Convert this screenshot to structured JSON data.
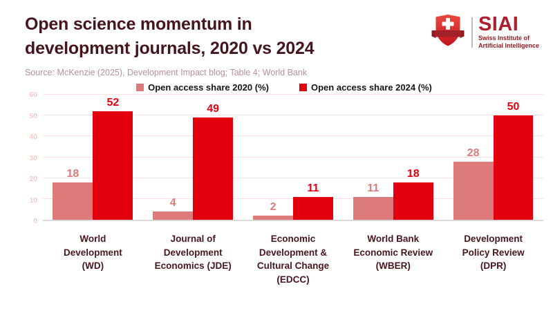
{
  "header": {
    "title": "Open science momentum in\ndevelopment journals, 2020 vs 2024",
    "source": "Source: McKenzie (2025), Development Impact blog; Table 4; World Bank"
  },
  "logo": {
    "acronym": "SIAI",
    "name_line1": "Swiss Institute of",
    "name_line2": "Artificial Intelligence"
  },
  "colors": {
    "title_maroon": "#44151e",
    "brand_red": "#b01d2c",
    "series_2020_pink": "#dd7a7a",
    "series_2024_red": "#e2000f",
    "source_mauve": "#b7909a",
    "ytick_pink": "#f3cbc7",
    "gridline_pink": "#f9e2e0"
  },
  "chart_data": {
    "type": "bar",
    "title": "Open science momentum in development journals, 2020 vs 2024",
    "xlabel": "",
    "ylabel": "",
    "categories": [
      "World Development (WD)",
      "Journal of Development Economics (JDE)",
      "Economic Development & Cultural Change (EDCC)",
      "World Bank Economic Review (WBER)",
      "Development Policy Review (DPR)"
    ],
    "tick_labels": [
      "World\nDevelopment\n(WD)",
      "Journal of\nDevelopment\nEconomics (JDE)",
      "Economic\nDevelopment &\nCultural Change\n(EDCC)",
      "World Bank\nEconomic Review\n(WBER)",
      "Development\nPolicy Review\n(DPR)"
    ],
    "series": [
      {
        "name": "Open access share 2020 (%)",
        "color": "#dd7a7a",
        "values": [
          18,
          4,
          2,
          11,
          28
        ]
      },
      {
        "name": "Open access share 2024 (%)",
        "color": "#e2000f",
        "values": [
          52,
          49,
          11,
          18,
          50
        ]
      }
    ],
    "ylim": [
      0,
      60
    ],
    "yticks": [
      0,
      10,
      20,
      30,
      40,
      50,
      60
    ],
    "grid": true,
    "legend_position": "top-center"
  }
}
